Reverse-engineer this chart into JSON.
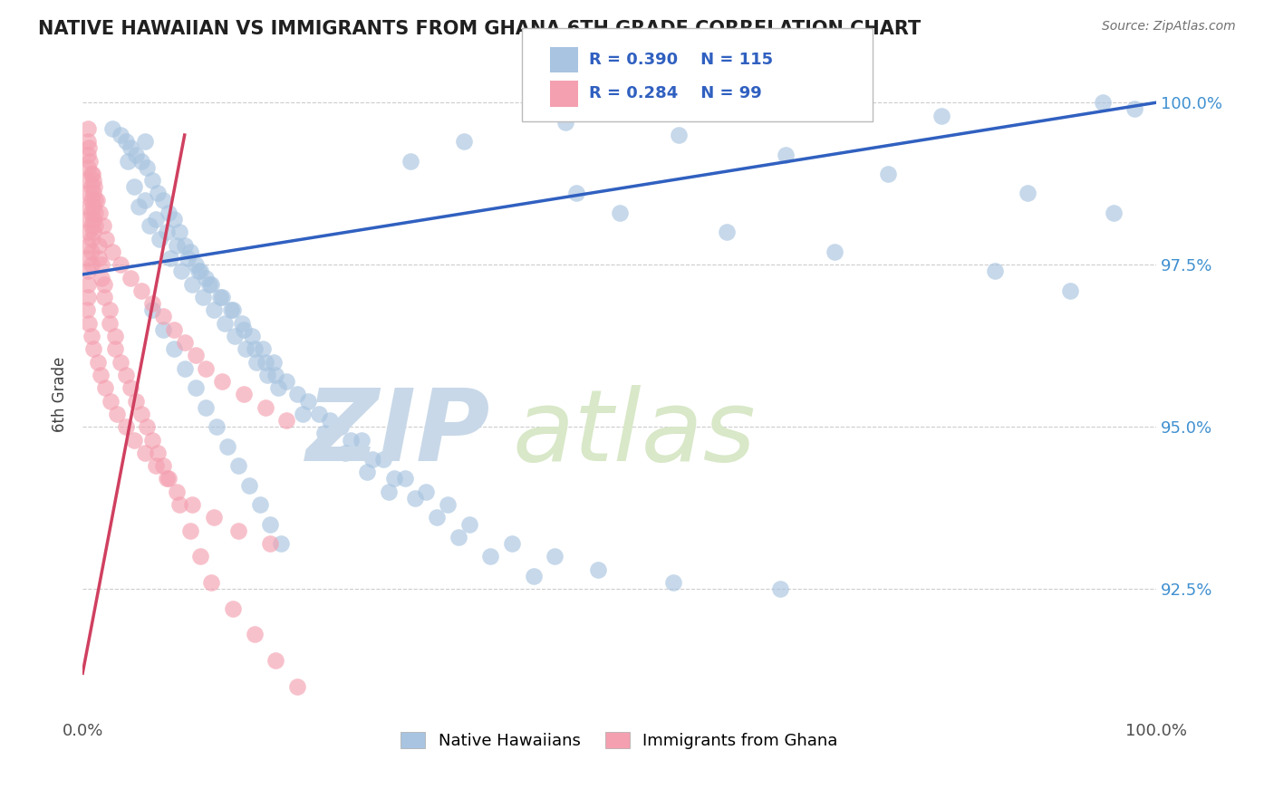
{
  "title": "NATIVE HAWAIIAN VS IMMIGRANTS FROM GHANA 6TH GRADE CORRELATION CHART",
  "source_text": "Source: ZipAtlas.com",
  "ylabel": "6th Grade",
  "xlim": [
    0.0,
    100.0
  ],
  "ylim": [
    90.5,
    100.5
  ],
  "yticks": [
    92.5,
    95.0,
    97.5,
    100.0
  ],
  "ytick_labels": [
    "92.5%",
    "95.0%",
    "97.5%",
    "100.0%"
  ],
  "blue_R": 0.39,
  "blue_N": 115,
  "pink_R": 0.284,
  "pink_N": 99,
  "blue_color": "#a8c4e0",
  "pink_color": "#f4a0b0",
  "blue_line_color": "#3060c0",
  "pink_line_color": "#d04060",
  "legend_label_blue": "Native Hawaiians",
  "legend_label_pink": "Immigrants from Ghana",
  "watermark_zip_color": "#c8d8e8",
  "watermark_atlas_color": "#d8e8c8",
  "blue_x": [
    2.8,
    3.5,
    4.0,
    4.5,
    5.0,
    5.5,
    6.0,
    6.5,
    7.0,
    7.5,
    8.0,
    8.5,
    9.0,
    9.5,
    10.0,
    10.5,
    11.0,
    11.5,
    12.0,
    13.0,
    14.0,
    15.0,
    16.0,
    17.0,
    18.0,
    20.0,
    22.0,
    24.0,
    26.0,
    28.0,
    30.0,
    32.0,
    34.0,
    36.0,
    40.0,
    44.0,
    48.0,
    55.0,
    65.0,
    80.0,
    95.0,
    98.0,
    5.2,
    6.2,
    7.2,
    8.2,
    9.2,
    10.2,
    11.2,
    12.2,
    13.2,
    14.2,
    15.2,
    16.2,
    17.2,
    18.2,
    4.8,
    5.8,
    6.8,
    7.8,
    8.8,
    9.8,
    10.8,
    11.8,
    12.8,
    13.8,
    14.8,
    15.8,
    16.8,
    17.8,
    19.0,
    21.0,
    23.0,
    25.0,
    27.0,
    29.0,
    31.0,
    33.0,
    35.0,
    38.0,
    42.0,
    46.0,
    50.0,
    60.0,
    70.0,
    85.0,
    92.0,
    6.5,
    7.5,
    8.5,
    9.5,
    10.5,
    11.5,
    12.5,
    13.5,
    14.5,
    15.5,
    16.5,
    17.5,
    18.5,
    20.5,
    22.5,
    24.5,
    26.5,
    28.5,
    30.5,
    35.5,
    45.0,
    55.5,
    65.5,
    75.0,
    88.0,
    96.0,
    4.2,
    5.8
  ],
  "blue_y": [
    99.6,
    99.5,
    99.4,
    99.3,
    99.2,
    99.1,
    99.0,
    98.8,
    98.6,
    98.5,
    98.3,
    98.2,
    98.0,
    97.8,
    97.7,
    97.5,
    97.4,
    97.3,
    97.2,
    97.0,
    96.8,
    96.5,
    96.2,
    96.0,
    95.8,
    95.5,
    95.2,
    95.0,
    94.8,
    94.5,
    94.2,
    94.0,
    93.8,
    93.5,
    93.2,
    93.0,
    92.8,
    92.6,
    92.5,
    99.8,
    100.0,
    99.9,
    98.4,
    98.1,
    97.9,
    97.6,
    97.4,
    97.2,
    97.0,
    96.8,
    96.6,
    96.4,
    96.2,
    96.0,
    95.8,
    95.6,
    98.7,
    98.5,
    98.2,
    98.0,
    97.8,
    97.6,
    97.4,
    97.2,
    97.0,
    96.8,
    96.6,
    96.4,
    96.2,
    96.0,
    95.7,
    95.4,
    95.1,
    94.8,
    94.5,
    94.2,
    93.9,
    93.6,
    93.3,
    93.0,
    92.7,
    98.6,
    98.3,
    98.0,
    97.7,
    97.4,
    97.1,
    96.8,
    96.5,
    96.2,
    95.9,
    95.6,
    95.3,
    95.0,
    94.7,
    94.4,
    94.1,
    93.8,
    93.5,
    93.2,
    95.2,
    94.9,
    94.6,
    94.3,
    94.0,
    99.1,
    99.4,
    99.7,
    99.5,
    99.2,
    98.9,
    98.6,
    98.3,
    99.1,
    99.4
  ],
  "pink_x": [
    0.5,
    0.5,
    0.5,
    0.5,
    0.5,
    0.5,
    0.5,
    0.5,
    0.5,
    0.5,
    0.5,
    0.5,
    0.5,
    0.5,
    0.8,
    0.8,
    0.8,
    0.8,
    0.8,
    0.8,
    0.8,
    0.8,
    1.0,
    1.0,
    1.0,
    1.0,
    1.0,
    1.2,
    1.2,
    1.2,
    1.5,
    1.5,
    1.8,
    1.8,
    2.0,
    2.0,
    2.5,
    2.5,
    3.0,
    3.0,
    3.5,
    4.0,
    4.5,
    5.0,
    5.5,
    6.0,
    6.5,
    7.0,
    7.5,
    8.0,
    9.0,
    10.0,
    11.0,
    12.0,
    14.0,
    16.0,
    18.0,
    20.0,
    0.6,
    0.7,
    0.9,
    1.1,
    1.3,
    1.6,
    1.9,
    2.2,
    2.8,
    3.5,
    4.5,
    5.5,
    6.5,
    7.5,
    8.5,
    9.5,
    10.5,
    11.5,
    13.0,
    15.0,
    17.0,
    19.0,
    0.4,
    0.6,
    0.8,
    1.0,
    1.4,
    1.7,
    2.1,
    2.6,
    3.2,
    4.0,
    4.8,
    5.8,
    6.8,
    7.8,
    8.8,
    10.2,
    12.2,
    14.5,
    17.5
  ],
  "pink_y": [
    99.6,
    99.4,
    99.2,
    99.0,
    98.8,
    98.6,
    98.4,
    98.2,
    98.0,
    97.8,
    97.6,
    97.4,
    97.2,
    97.0,
    98.9,
    98.7,
    98.5,
    98.3,
    98.1,
    97.9,
    97.7,
    97.5,
    98.8,
    98.6,
    98.4,
    98.2,
    98.0,
    98.5,
    98.3,
    98.1,
    97.8,
    97.6,
    97.5,
    97.3,
    97.2,
    97.0,
    96.8,
    96.6,
    96.4,
    96.2,
    96.0,
    95.8,
    95.6,
    95.4,
    95.2,
    95.0,
    94.8,
    94.6,
    94.4,
    94.2,
    93.8,
    93.4,
    93.0,
    92.6,
    92.2,
    91.8,
    91.4,
    91.0,
    99.3,
    99.1,
    98.9,
    98.7,
    98.5,
    98.3,
    98.1,
    97.9,
    97.7,
    97.5,
    97.3,
    97.1,
    96.9,
    96.7,
    96.5,
    96.3,
    96.1,
    95.9,
    95.7,
    95.5,
    95.3,
    95.1,
    96.8,
    96.6,
    96.4,
    96.2,
    96.0,
    95.8,
    95.6,
    95.4,
    95.2,
    95.0,
    94.8,
    94.6,
    94.4,
    94.2,
    94.0,
    93.8,
    93.6,
    93.4,
    93.2
  ],
  "blue_line_x": [
    0.0,
    100.0
  ],
  "blue_line_y": [
    97.35,
    100.0
  ],
  "pink_line_x": [
    0.0,
    9.5
  ],
  "pink_line_y": [
    91.2,
    99.5
  ]
}
